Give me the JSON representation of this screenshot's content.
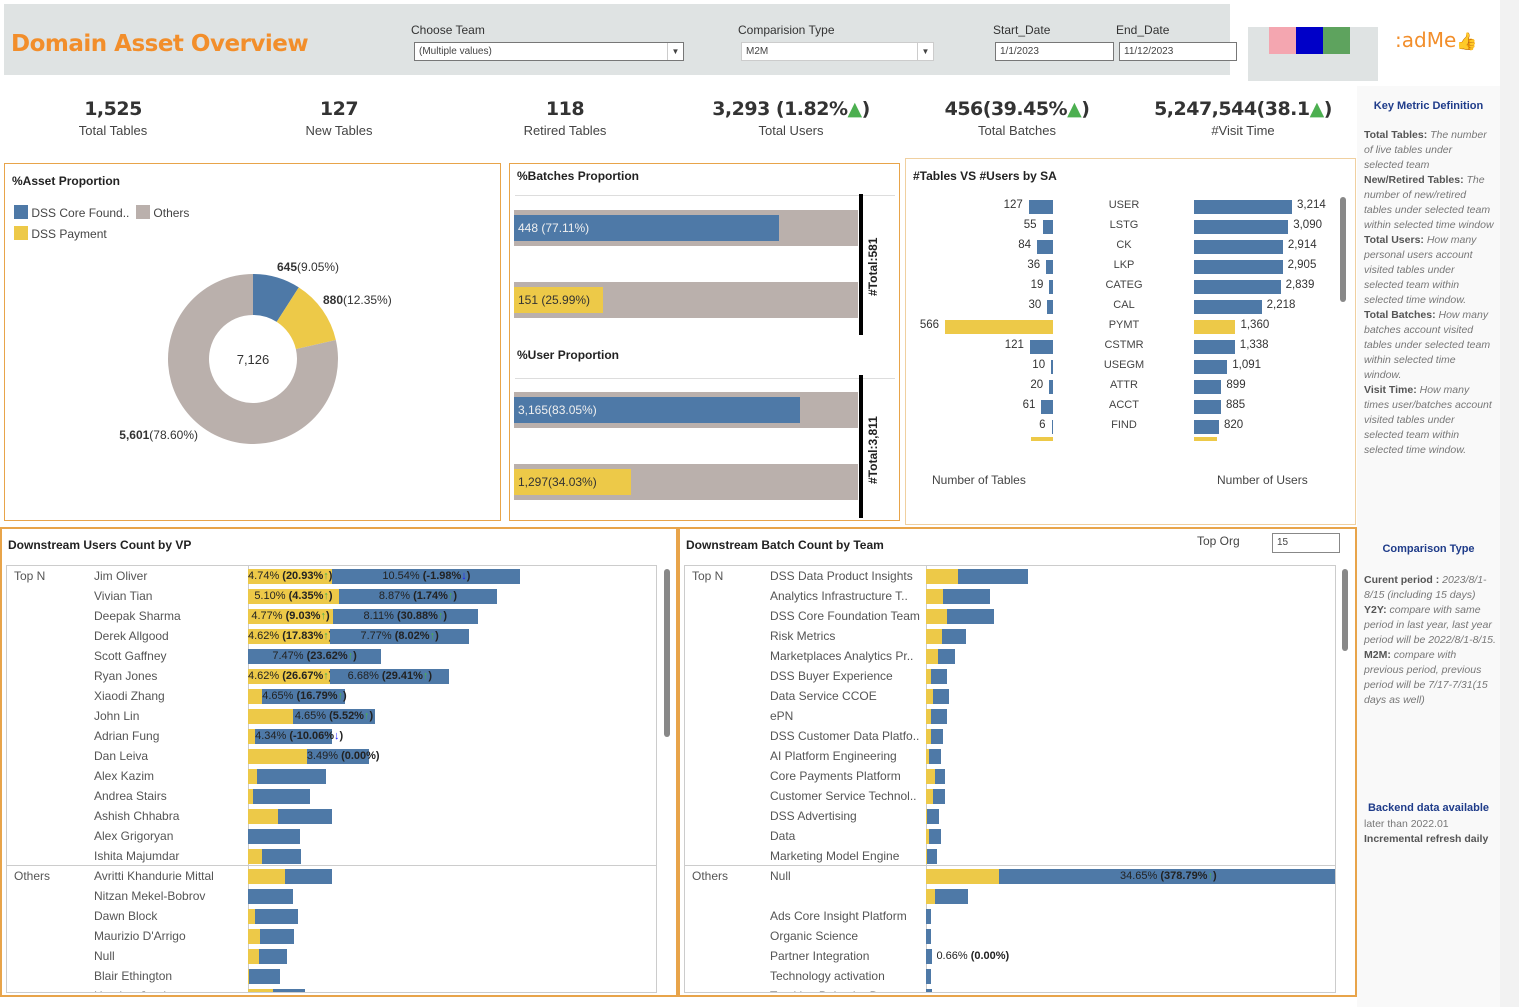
{
  "header": {
    "title": "Domain Asset Overview",
    "filters": {
      "team": {
        "label": "Choose Team",
        "value": "(Multiple values)"
      },
      "comparison": {
        "label": "Comparision Type",
        "value": "M2M"
      },
      "start": {
        "label": "Start_Date",
        "value": "1/1/2023"
      },
      "end": {
        "label": "End_Date",
        "value": "11/12/2023"
      }
    },
    "legend_swatches": [
      "#f4a6b0",
      "#0000c8",
      "#5ea35e"
    ],
    "readme_label": "adMe",
    "readme_icon": "thumbs-up-icon"
  },
  "kpis": [
    {
      "value": "1,525",
      "label": "Total Tables"
    },
    {
      "value": "127",
      "label": "New Tables"
    },
    {
      "value": "118",
      "label": "Retired Tables"
    },
    {
      "value": "3,293 (1.82%",
      "arrow": "▲",
      "suffix": ")",
      "label": "Total Users"
    },
    {
      "value": "456(39.45%",
      "arrow": "▲",
      "suffix": ")",
      "label": "Total Batches"
    },
    {
      "value": "5,247,544(38.1",
      "arrow": "▲",
      "suffix": ")",
      "label": "#Visit Time"
    }
  ],
  "colors": {
    "blue": "#4e79a7",
    "yellow": "#edc948",
    "grey": "#bab0ac",
    "orange": "#f28e2b",
    "navy": "#1f3c8a",
    "up": "#4caf50",
    "down": "#1a1aff"
  },
  "chart_data": [
    {
      "type": "pie",
      "title": "%Asset Proportion",
      "legend": [
        "DSS Core Found..",
        "Others",
        "DSS Payment"
      ],
      "center_label": "7,126",
      "slices": [
        {
          "name": "DSS Core Foundation",
          "value": 645,
          "pct": "9.05%",
          "color": "#4e79a7",
          "label_value": "645",
          "label_pct": "(9.05%)"
        },
        {
          "name": "DSS Payment",
          "value": 880,
          "pct": "12.35%",
          "color": "#edc948",
          "label_value": "880",
          "label_pct": "(12.35%)"
        },
        {
          "name": "Others",
          "value": 5601,
          "pct": "78.60%",
          "color": "#bab0ac",
          "label_value": "5,601",
          "label_pct": "(78.60%)"
        }
      ]
    },
    {
      "type": "bar",
      "title": "%Batches Proportion",
      "total_label": "#Total:581",
      "total": 581,
      "bars": [
        {
          "value": 448,
          "fraction": 0.7711,
          "label": "448 (77.11%)",
          "color": "#4e79a7"
        },
        {
          "value": 151,
          "fraction": 0.2599,
          "label": "151 (25.99%)",
          "color": "#edc948"
        }
      ]
    },
    {
      "type": "bar",
      "title": "%User Proportion",
      "total_label": "#Total:3,811",
      "total": 3811,
      "bars": [
        {
          "value": 3165,
          "fraction": 0.8305,
          "label": "3,165(83.05%)",
          "color": "#4e79a7"
        },
        {
          "value": 1297,
          "fraction": 0.3403,
          "label": "1,297(34.03%)",
          "color": "#edc948"
        }
      ]
    },
    {
      "type": "bar",
      "title": "#Tables VS #Users by SA",
      "xlabel_left": "Number of Tables",
      "xlabel_right": "Number of Users",
      "categories": [
        "USER",
        "LSTG",
        "CK",
        "LKP",
        "CATEG",
        "CAL",
        "PYMT",
        "CSTMR",
        "USEGM",
        "ATTR",
        "ACCT",
        "FIND"
      ],
      "series": [
        {
          "name": "Number of Tables",
          "values": [
            127,
            55,
            84,
            36,
            19,
            30,
            566,
            121,
            10,
            20,
            61,
            6
          ],
          "labels": [
            "127",
            "55",
            "84",
            "36",
            "19",
            "30",
            "566",
            "121",
            "10",
            "20",
            "61",
            "6"
          ]
        },
        {
          "name": "Number of Users",
          "values": [
            3214,
            3090,
            2914,
            2905,
            2839,
            2218,
            1360,
            1338,
            1091,
            899,
            885,
            820
          ],
          "labels": [
            "3,214",
            "3,090",
            "2,914",
            "2,905",
            "2,839",
            "2,218",
            "1,360",
            "1,338",
            "1,091",
            "899",
            "885",
            "820"
          ]
        }
      ],
      "highlight": "PYMT",
      "max_tables": 566,
      "max_users": 3214
    },
    {
      "type": "bar",
      "title": "Downstream Users Count by VP",
      "groups": [
        "Top N",
        "Others"
      ],
      "rows": [
        {
          "group": "Top N",
          "name": "Jim Oliver",
          "y": 4.74,
          "b": 10.54,
          "ylabel": "4.74% ",
          "ychg": "20.93%",
          "ydir": "up",
          "blabel": "10.54% ",
          "bchg": "-1.98%",
          "bdir": "down"
        },
        {
          "group": "",
          "name": "Vivian Tian",
          "y": 5.1,
          "b": 8.87,
          "ylabel": "5.10% ",
          "ychg": "4.35%",
          "ydir": "up",
          "blabel": "8.87% ",
          "bchg": "1.74%",
          "bdir": "up"
        },
        {
          "group": "",
          "name": "Deepak Sharma",
          "y": 4.77,
          "b": 8.11,
          "ylabel": "4.77% ",
          "ychg": "9.03%",
          "ydir": "up",
          "blabel": "8.11% ",
          "bchg": "30.88%",
          "bdir": "up"
        },
        {
          "group": "",
          "name": "Derek Allgood",
          "y": 4.62,
          "b": 7.77,
          "ylabel": "4.62% ",
          "ychg": "17.83%",
          "ydir": "up",
          "blabel": "7.77% ",
          "bchg": "8.02%",
          "bdir": "up"
        },
        {
          "group": "",
          "name": "Scott Gaffney",
          "y": 0,
          "b": 7.47,
          "ylabel": "",
          "ychg": "",
          "ydir": "",
          "blabel": "7.47% ",
          "bchg": "23.62%",
          "bdir": "up"
        },
        {
          "group": "",
          "name": "Ryan Jones",
          "y": 4.62,
          "b": 6.68,
          "ylabel": "4.62% ",
          "ychg": "26.67%",
          "ydir": "up",
          "blabel": "6.68% ",
          "bchg": "29.41%",
          "bdir": "up"
        },
        {
          "group": "",
          "name": "Xiaodi Zhang",
          "y": 0.8,
          "b": 4.65,
          "ylabel": "",
          "ychg": "",
          "ydir": "",
          "blabel": "4.65% ",
          "bchg": "16.79%",
          "bdir": "up"
        },
        {
          "group": "",
          "name": "John Lin",
          "y": 2.5,
          "b": 4.65,
          "ylabel": "",
          "ychg": "",
          "ydir": "",
          "blabel": "4.65% ",
          "bchg": "5.52%",
          "bdir": "up"
        },
        {
          "group": "",
          "name": "Adrian Fung",
          "y": 0.4,
          "b": 4.34,
          "ylabel": "",
          "ychg": "",
          "ydir": "",
          "blabel": "4.34% ",
          "bchg": "-10.06%",
          "bdir": "down"
        },
        {
          "group": "",
          "name": "Dan Leiva",
          "y": 3.3,
          "b": 3.49,
          "ylabel": "",
          "ychg": "",
          "ydir": "",
          "blabel": "3.49% ",
          "bchg": "0.00%",
          "bdir": ""
        },
        {
          "group": "",
          "name": "Alex Kazim",
          "y": 0.5,
          "b": 3.9,
          "ylabel": "",
          "ychg": "",
          "ydir": "",
          "blabel": "",
          "bchg": "",
          "bdir": ""
        },
        {
          "group": "",
          "name": "Andrea Stairs",
          "y": 0.3,
          "b": 3.2,
          "ylabel": "",
          "ychg": "",
          "ydir": "",
          "blabel": "",
          "bchg": "",
          "bdir": ""
        },
        {
          "group": "",
          "name": "Ashish Chhabra",
          "y": 1.7,
          "b": 3.0,
          "ylabel": "",
          "ychg": "",
          "ydir": "",
          "blabel": "",
          "bchg": "",
          "bdir": ""
        },
        {
          "group": "",
          "name": "Alex Grigoryan",
          "y": 0,
          "b": 2.9,
          "ylabel": "",
          "ychg": "",
          "ydir": "",
          "blabel": "",
          "bchg": "",
          "bdir": ""
        },
        {
          "group": "",
          "name": "Ishita Majumdar",
          "y": 0.8,
          "b": 2.2,
          "ylabel": "",
          "ychg": "",
          "ydir": "",
          "blabel": "",
          "bchg": "",
          "bdir": ""
        },
        {
          "group": "Others",
          "name": "Avritti Khandurie Mittal",
          "y": 2.1,
          "b": 2.6,
          "ylabel": "",
          "ychg": "",
          "ydir": "",
          "blabel": "",
          "bchg": "",
          "bdir": ""
        },
        {
          "group": "",
          "name": "Nitzan Mekel-Bobrov",
          "y": 0,
          "b": 2.5,
          "ylabel": "",
          "ychg": "",
          "ydir": "",
          "blabel": "",
          "bchg": "",
          "bdir": ""
        },
        {
          "group": "",
          "name": "Dawn Block",
          "y": 0.4,
          "b": 2.4,
          "ylabel": "",
          "ychg": "",
          "ydir": "",
          "blabel": "",
          "bchg": "",
          "bdir": ""
        },
        {
          "group": "",
          "name": "Maurizio D'Arrigo",
          "y": 0.7,
          "b": 1.9,
          "ylabel": "",
          "ychg": "",
          "ydir": "",
          "blabel": "",
          "bchg": "",
          "bdir": ""
        },
        {
          "group": "",
          "name": "Null",
          "y": 0.6,
          "b": 1.6,
          "ylabel": "",
          "ychg": "",
          "ydir": "",
          "blabel": "",
          "bchg": "",
          "bdir": ""
        },
        {
          "group": "",
          "name": "Blair Ethington",
          "y": 0.05,
          "b": 1.75,
          "ylabel": "",
          "ychg": "",
          "ydir": "",
          "blabel": "",
          "bchg": "",
          "bdir": ""
        },
        {
          "group": "",
          "name": "Heather Jurek",
          "y": 1.4,
          "b": 1.8,
          "ylabel": "",
          "ychg": "",
          "ydir": "",
          "blabel": "",
          "bchg": "",
          "bdir": ""
        }
      ],
      "xmax": 23
    },
    {
      "type": "bar",
      "title": "Downstream Batch Count by Team",
      "top_org_label": "Top Org",
      "top_org_value": "15",
      "groups": [
        "Top N",
        "Others"
      ],
      "rows": [
        {
          "group": "Top N",
          "name": "DSS Data Product Insights",
          "y": 3.3,
          "b": 7.1,
          "label": "",
          "chg": ""
        },
        {
          "group": "",
          "name": "Analytics Infrastructure T..",
          "y": 1.7,
          "b": 4.9,
          "label": "",
          "chg": ""
        },
        {
          "group": "",
          "name": "DSS Core Foundation Team",
          "y": 2.2,
          "b": 4.8,
          "label": "",
          "chg": ""
        },
        {
          "group": "",
          "name": "Risk Metrics",
          "y": 1.6,
          "b": 2.5,
          "label": "",
          "chg": ""
        },
        {
          "group": "",
          "name": "Marketplaces Analytics Pr..",
          "y": 1.2,
          "b": 1.8,
          "label": "",
          "chg": ""
        },
        {
          "group": "",
          "name": "DSS Buyer Experience",
          "y": 0.5,
          "b": 1.7,
          "label": "",
          "chg": ""
        },
        {
          "group": "",
          "name": "Data Service CCOE",
          "y": 0.7,
          "b": 1.7,
          "label": "",
          "chg": ""
        },
        {
          "group": "",
          "name": "ePN",
          "y": 0.5,
          "b": 1.7,
          "label": "",
          "chg": ""
        },
        {
          "group": "",
          "name": "DSS Customer Data Platfo..",
          "y": 0.5,
          "b": 1.2,
          "label": "",
          "chg": ""
        },
        {
          "group": "",
          "name": "AI Platform Engineering",
          "y": 0.3,
          "b": 1.2,
          "label": "",
          "chg": ""
        },
        {
          "group": "",
          "name": "Core Payments Platform",
          "y": 0.9,
          "b": 1.0,
          "label": "",
          "chg": ""
        },
        {
          "group": "",
          "name": "Customer Service Technol..",
          "y": 0.7,
          "b": 1.2,
          "label": "",
          "chg": ""
        },
        {
          "group": "",
          "name": "DSS Advertising",
          "y": 0.1,
          "b": 1.2,
          "label": "",
          "chg": ""
        },
        {
          "group": "",
          "name": "Data",
          "y": 0.3,
          "b": 1.2,
          "label": "",
          "chg": ""
        },
        {
          "group": "",
          "name": "Marketing Model Engine",
          "y": 0.1,
          "b": 1.0,
          "label": "",
          "chg": ""
        },
        {
          "group": "Others",
          "name": "Null",
          "y": 7.5,
          "b": 34.65,
          "label": "34.65% ",
          "chg": "378.79%"
        },
        {
          "group": "",
          "name": "",
          "y": 0.9,
          "b": 3.4,
          "label": "",
          "chg": ""
        },
        {
          "group": "",
          "name": "Ads Core Insight Platform",
          "y": 0,
          "b": 0.5,
          "label": "",
          "chg": ""
        },
        {
          "group": "",
          "name": "Organic Science",
          "y": 0,
          "b": 0.5,
          "label": "",
          "chg": ""
        },
        {
          "group": "",
          "name": "Partner Integration",
          "y": 0,
          "b": 0.66,
          "label": "0.66% ",
          "chg": "0.00%",
          "outside": true
        },
        {
          "group": "",
          "name": "Technology activation",
          "y": 0,
          "b": 0.5,
          "label": "",
          "chg": ""
        },
        {
          "group": "",
          "name": "Tracking Behavior Data",
          "y": 0,
          "b": 0.6,
          "label": "",
          "chg": ""
        }
      ],
      "xmax": 42
    }
  ],
  "side": {
    "key_title": "Key Metric Definition",
    "defs": [
      {
        "term": "Total Tables:",
        "text": " The number of live tables under selected team"
      },
      {
        "term": "New/Retired Tables:",
        "text": " The number of new/retired tables under selected team within selected time window"
      },
      {
        "term": "Total Users:",
        "text": " How many personal users account visited tables under selected team within selected time window."
      },
      {
        "term": "Total Batches:",
        "text": " How many batches account visited tables under selected team within selected time window."
      },
      {
        "term": "Visit Time:",
        "text": " How many times user/batches account visited tables under selected team within selected time window."
      }
    ],
    "comp_title": "Comparison Type",
    "comps": [
      {
        "term": "Curent  period :",
        "text": " 2023/8/1-8/15 (including 15 days)"
      },
      {
        "term": "Y2Y:",
        "text": " compare with same period in last year, last year period will be 2022/8/1-8/15."
      },
      {
        "term": "M2M:",
        "text": " compare with previous period, previous period will be 7/17-7/31(15 days as well)"
      }
    ],
    "backend_title": "Backend data available",
    "backend_text": "later than 2022.01",
    "refresh_text": "Incremental refresh daily"
  }
}
